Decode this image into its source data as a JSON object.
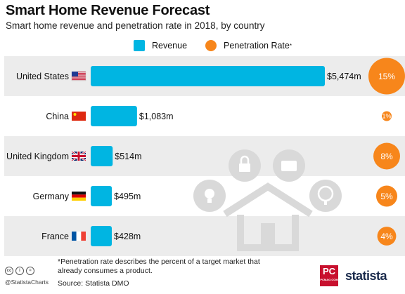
{
  "header": {
    "title": "Smart Home Revenue Forecast",
    "subtitle": "Smart home revenue and penetration rate in 2018, by country"
  },
  "legend": {
    "revenue_label": "Revenue",
    "penetration_label": "Penetration Rate",
    "penetration_marker": "*"
  },
  "colors": {
    "revenue": "#00b5e2",
    "penetration": "#f7861b",
    "row_band": "#ececec",
    "icon_gray": "#d9d9d9"
  },
  "chart_data": {
    "type": "bar",
    "categories": [
      "United States",
      "China",
      "United Kingdom",
      "Germany",
      "France"
    ],
    "series": [
      {
        "name": "Revenue",
        "values": [
          5474,
          1083,
          514,
          495,
          428
        ],
        "labels": [
          "$5,474m",
          "$1,083m",
          "$514m",
          "$495m",
          "$428m"
        ]
      },
      {
        "name": "Penetration Rate",
        "values": [
          15,
          1,
          8,
          5,
          4
        ],
        "labels": [
          "15%",
          "1%",
          "8%",
          "5%",
          "4%"
        ]
      }
    ],
    "flags": [
      "us-flag",
      "china-flag",
      "uk-flag",
      "germany-flag",
      "france-flag"
    ],
    "xlim": [
      0,
      5474
    ]
  },
  "footer": {
    "footnote": "*Penetration rate describes the percent of a target market that already consumes a product.",
    "source": "Source: Statista DMO",
    "handle": "@StatistaCharts",
    "pc_logo": "PC",
    "pc_sub": "PCMAG.COM",
    "brand": "statista"
  }
}
